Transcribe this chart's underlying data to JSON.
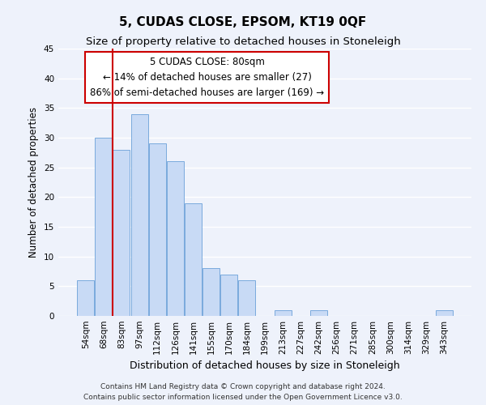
{
  "title": "5, CUDAS CLOSE, EPSOM, KT19 0QF",
  "subtitle": "Size of property relative to detached houses in Stoneleigh",
  "xlabel": "Distribution of detached houses by size in Stoneleigh",
  "ylabel": "Number of detached properties",
  "bar_labels": [
    "54sqm",
    "68sqm",
    "83sqm",
    "97sqm",
    "112sqm",
    "126sqm",
    "141sqm",
    "155sqm",
    "170sqm",
    "184sqm",
    "199sqm",
    "213sqm",
    "227sqm",
    "242sqm",
    "256sqm",
    "271sqm",
    "285sqm",
    "300sqm",
    "314sqm",
    "329sqm",
    "343sqm"
  ],
  "bar_heights": [
    6,
    30,
    28,
    34,
    29,
    26,
    19,
    8,
    7,
    6,
    0,
    1,
    0,
    1,
    0,
    0,
    0,
    0,
    0,
    0,
    1
  ],
  "bar_color": "#c8daf5",
  "bar_edge_color": "#7aaadd",
  "red_line_x": 1.5,
  "red_line_color": "#cc0000",
  "ylim": [
    0,
    45
  ],
  "yticks": [
    0,
    5,
    10,
    15,
    20,
    25,
    30,
    35,
    40,
    45
  ],
  "annotation_box_title": "5 CUDAS CLOSE: 80sqm",
  "annotation_line1": "← 14% of detached houses are smaller (27)",
  "annotation_line2": "86% of semi-detached houses are larger (169) →",
  "annotation_box_color": "#ffffff",
  "annotation_box_edge": "#cc0000",
  "footer_line1": "Contains HM Land Registry data © Crown copyright and database right 2024.",
  "footer_line2": "Contains public sector information licensed under the Open Government Licence v3.0.",
  "bg_color": "#eef2fb",
  "grid_color": "#ffffff",
  "title_fontsize": 11,
  "subtitle_fontsize": 9.5,
  "tick_fontsize": 7.5,
  "ylabel_fontsize": 8.5,
  "xlabel_fontsize": 9,
  "footer_fontsize": 6.5,
  "annot_fontsize": 8.5
}
